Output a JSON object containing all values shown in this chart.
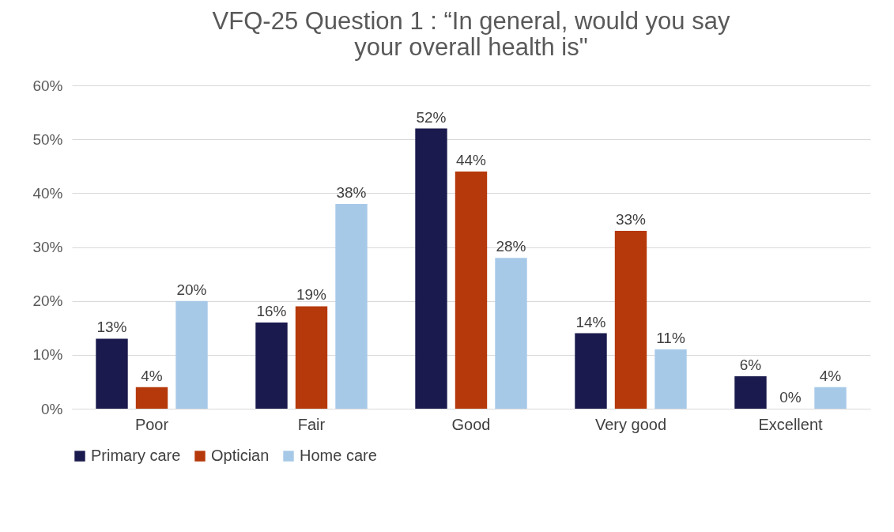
{
  "chart_data": {
    "type": "bar",
    "title": "VFQ-25 Question 1 : “In general, would you say your overall health is\"",
    "categories": [
      "Poor",
      "Fair",
      "Good",
      "Very good",
      "Excellent"
    ],
    "series": [
      {
        "name": "Primary care",
        "color": "#1a1a4e",
        "values": [
          13,
          16,
          52,
          14,
          6
        ],
        "value_labels": [
          "13%",
          "16%",
          "52%",
          "14%",
          "6%"
        ]
      },
      {
        "name": "Optician",
        "color": "#b5390a",
        "values": [
          4,
          19,
          44,
          33,
          0
        ],
        "value_labels": [
          "4%",
          "19%",
          "44%",
          "33%",
          "0%"
        ]
      },
      {
        "name": "Home care",
        "color": "#a7c9e8",
        "values": [
          20,
          38,
          28,
          11,
          4
        ],
        "value_labels": [
          "20%",
          "38%",
          "28%",
          "11%",
          "4%"
        ]
      }
    ],
    "ylim": [
      0,
      60
    ],
    "yticks": [
      {
        "value": 0,
        "label": "0%"
      },
      {
        "value": 10,
        "label": "10%"
      },
      {
        "value": 20,
        "label": "20%"
      },
      {
        "value": 30,
        "label": "30%"
      },
      {
        "value": 40,
        "label": "40%"
      },
      {
        "value": 50,
        "label": "50%"
      },
      {
        "value": 60,
        "label": "60%"
      }
    ],
    "grid": "y",
    "legend": "bottom"
  }
}
